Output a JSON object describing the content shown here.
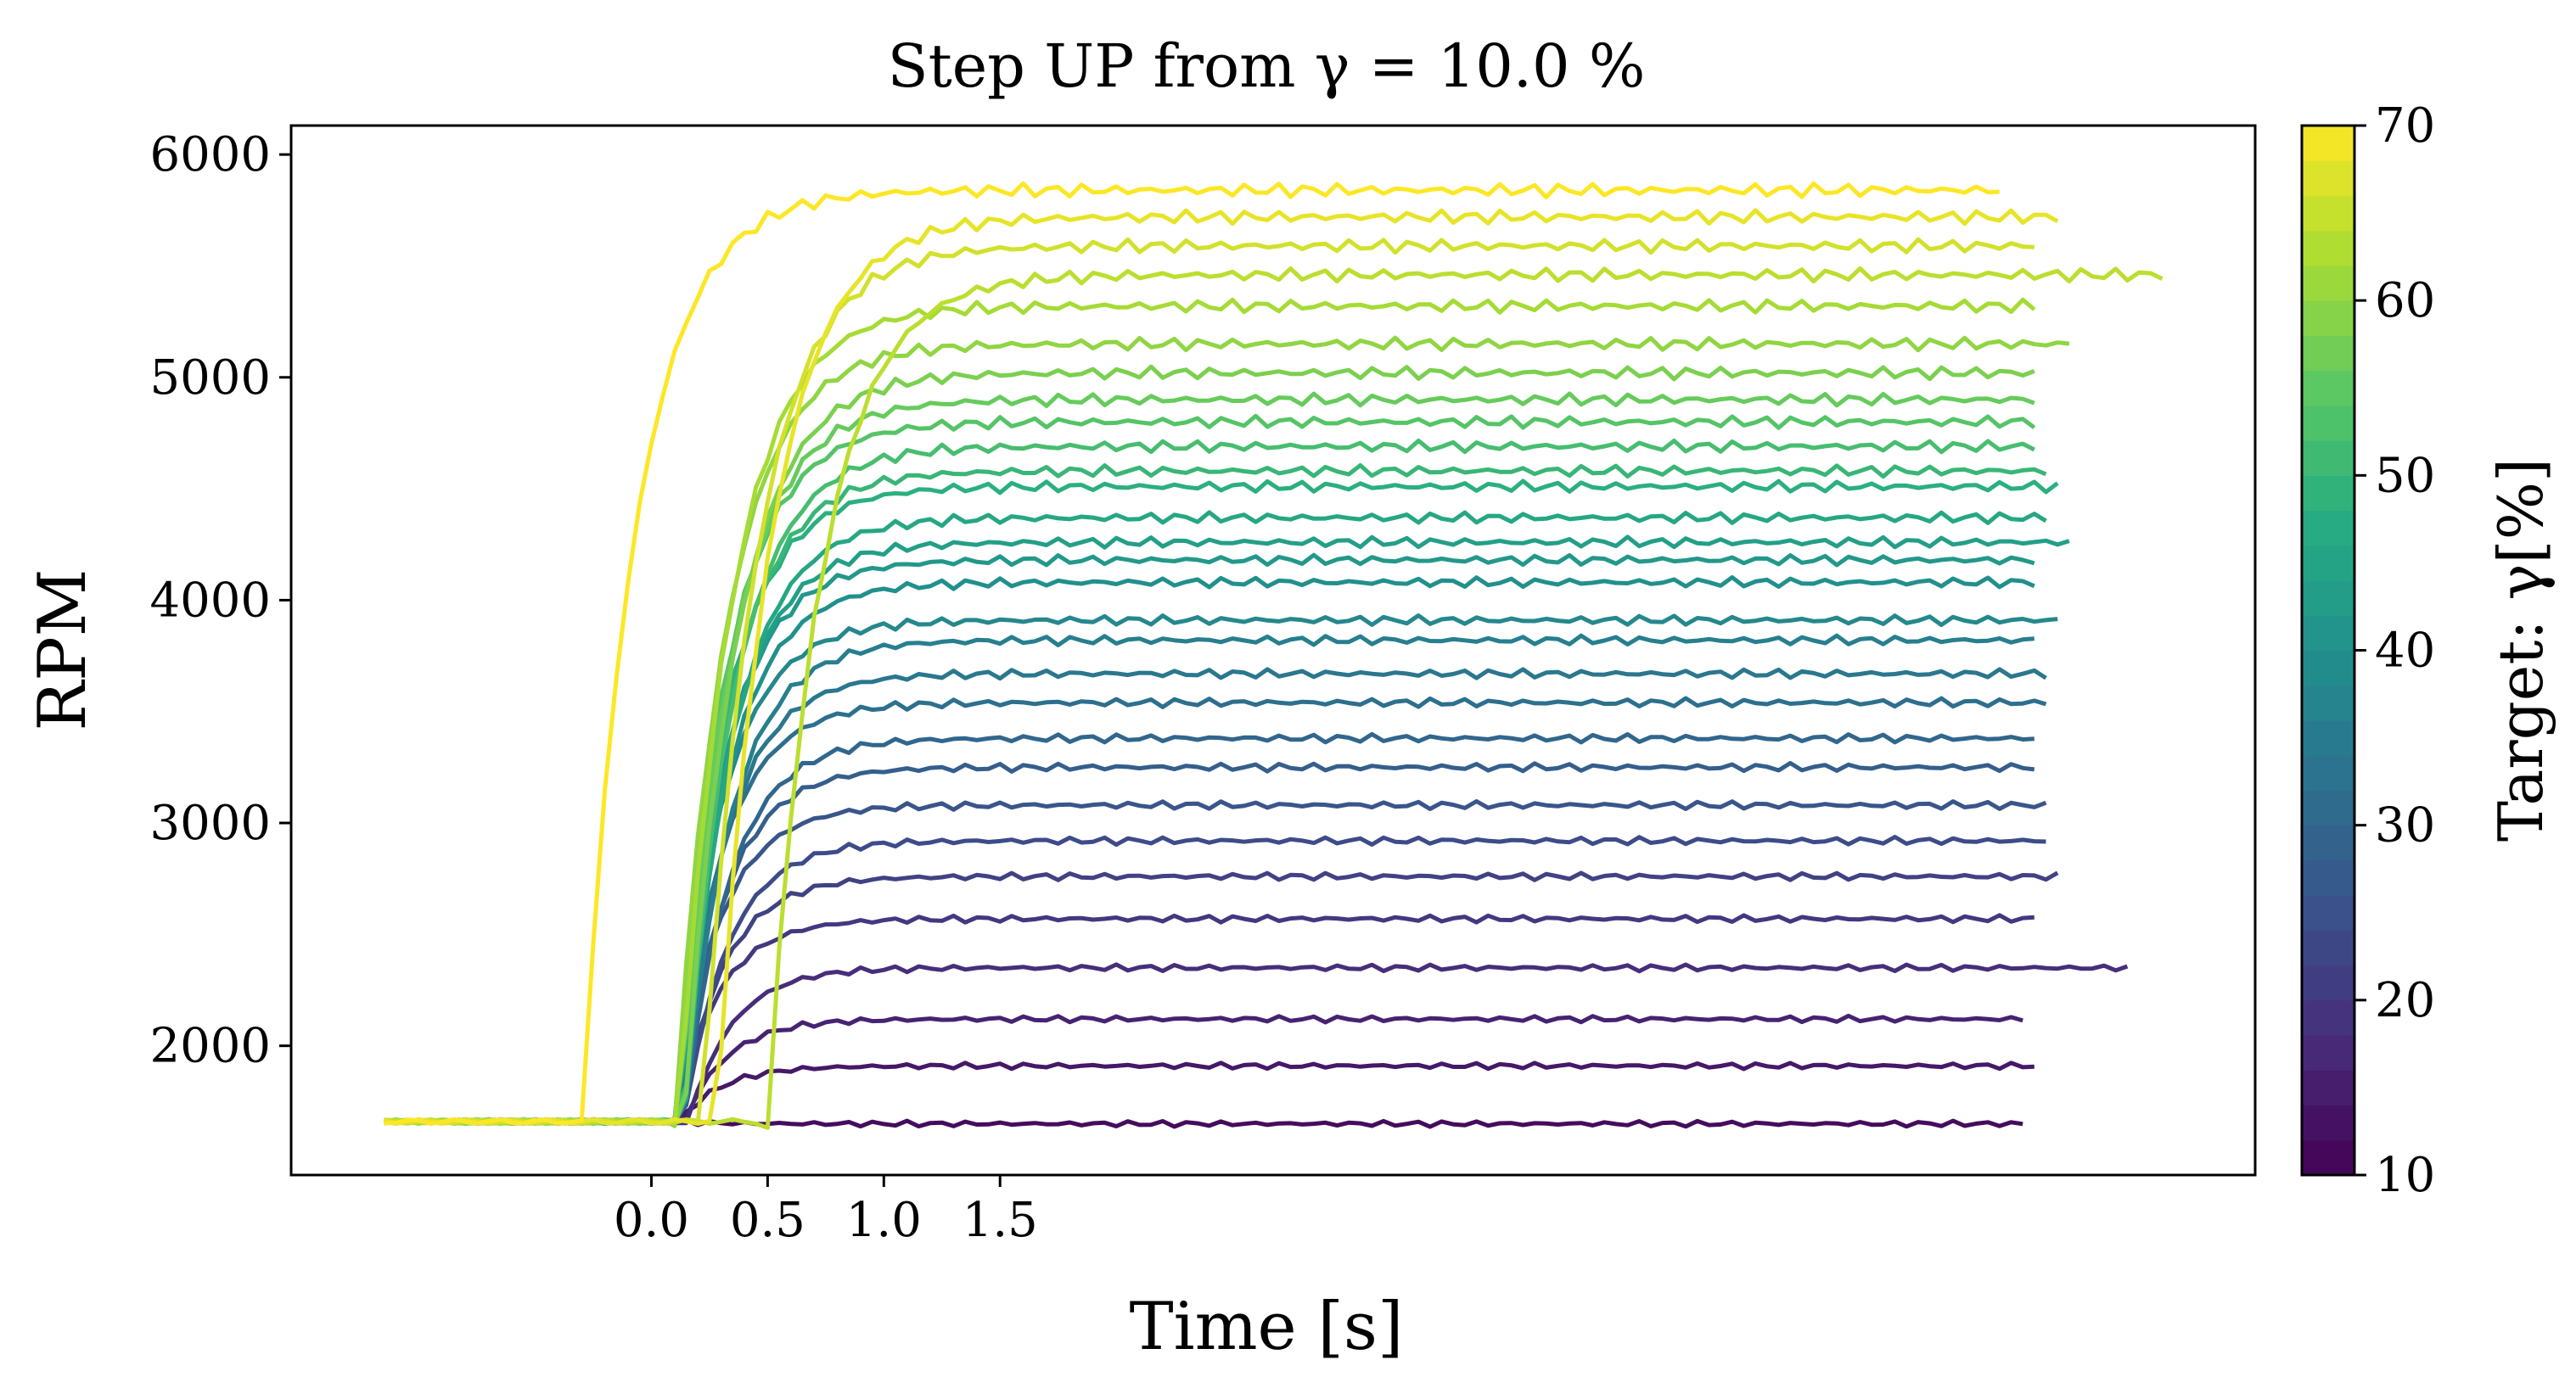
{
  "chart_data": {
    "type": "line",
    "title": "Step UP from γ = 10.0 %",
    "xlabel": "Time [s]",
    "ylabel": "RPM",
    "xlim": [
      -1.55,
      6.9
    ],
    "ylim": [
      1420,
      6130
    ],
    "x_ticks": [
      0.0,
      0.5,
      1.0,
      1.5
    ],
    "x_tick_labels": [
      "0.0",
      "0.5",
      "1.0",
      "1.5"
    ],
    "y_ticks": [
      2000,
      3000,
      4000,
      5000,
      6000
    ],
    "y_tick_labels": [
      "2000",
      "3000",
      "4000",
      "5000",
      "6000"
    ],
    "grid": false,
    "colorbar": {
      "label": "Target: γ[%]",
      "min": 10,
      "max": 70,
      "ticks": [
        10,
        20,
        30,
        40,
        50,
        60,
        70
      ],
      "tick_labels": [
        "10",
        "20",
        "30",
        "40",
        "50",
        "60",
        "70"
      ],
      "colormap": "viridis"
    },
    "initial_rpm": 1660,
    "series": [
      {
        "target": 12,
        "final_rpm": 1650,
        "step_time": 0.1,
        "end_time": 5.9
      },
      {
        "target": 14,
        "final_rpm": 1910,
        "step_time": 0.12,
        "end_time": 5.95
      },
      {
        "target": 16,
        "final_rpm": 2120,
        "step_time": 0.14,
        "end_time": 5.9
      },
      {
        "target": 18,
        "final_rpm": 2350,
        "step_time": 0.16,
        "end_time": 6.35
      },
      {
        "target": 20,
        "final_rpm": 2570,
        "step_time": 0.1,
        "end_time": 5.95
      },
      {
        "target": 22,
        "final_rpm": 2760,
        "step_time": 0.12,
        "end_time": 6.05
      },
      {
        "target": 24,
        "final_rpm": 2920,
        "step_time": 0.14,
        "end_time": 6.0
      },
      {
        "target": 26,
        "final_rpm": 3080,
        "step_time": 0.1,
        "end_time": 6.0
      },
      {
        "target": 28,
        "final_rpm": 3250,
        "step_time": 0.12,
        "end_time": 5.95
      },
      {
        "target": 30,
        "final_rpm": 3380,
        "step_time": 0.14,
        "end_time": 5.95
      },
      {
        "target": 32,
        "final_rpm": 3540,
        "step_time": 0.1,
        "end_time": 6.0
      },
      {
        "target": 34,
        "final_rpm": 3670,
        "step_time": 0.12,
        "end_time": 6.0
      },
      {
        "target": 36,
        "final_rpm": 3820,
        "step_time": 0.14,
        "end_time": 5.95
      },
      {
        "target": 38,
        "final_rpm": 3910,
        "step_time": 0.1,
        "end_time": 6.05
      },
      {
        "target": 40,
        "final_rpm": 4080,
        "step_time": 0.12,
        "end_time": 5.95
      },
      {
        "target": 42,
        "final_rpm": 4180,
        "step_time": 0.1,
        "end_time": 5.95
      },
      {
        "target": 44,
        "final_rpm": 4260,
        "step_time": 0.12,
        "end_time": 6.1
      },
      {
        "target": 46,
        "final_rpm": 4370,
        "step_time": 0.14,
        "end_time": 6.0
      },
      {
        "target": 48,
        "final_rpm": 4510,
        "step_time": 0.1,
        "end_time": 6.05
      },
      {
        "target": 50,
        "final_rpm": 4580,
        "step_time": 0.12,
        "end_time": 6.0
      },
      {
        "target": 52,
        "final_rpm": 4690,
        "step_time": 0.14,
        "end_time": 5.95
      },
      {
        "target": 54,
        "final_rpm": 4800,
        "step_time": 0.1,
        "end_time": 5.95
      },
      {
        "target": 56,
        "final_rpm": 4900,
        "step_time": 0.12,
        "end_time": 5.95
      },
      {
        "target": 58,
        "final_rpm": 5020,
        "step_time": 0.14,
        "end_time": 5.95
      },
      {
        "target": 60,
        "final_rpm": 5150,
        "step_time": 0.1,
        "end_time": 6.1
      },
      {
        "target": 62,
        "final_rpm": 5320,
        "step_time": 0.12,
        "end_time": 5.95
      },
      {
        "target": 64,
        "final_rpm": 5460,
        "step_time": 0.5,
        "end_time": 6.5
      },
      {
        "target": 66,
        "final_rpm": 5590,
        "step_time": 0.22,
        "end_time": 5.95
      },
      {
        "target": 68,
        "final_rpm": 5720,
        "step_time": 0.28,
        "end_time": 6.05
      },
      {
        "target": 70,
        "final_rpm": 5840,
        "step_time": -0.3,
        "end_time": 5.8
      }
    ]
  }
}
